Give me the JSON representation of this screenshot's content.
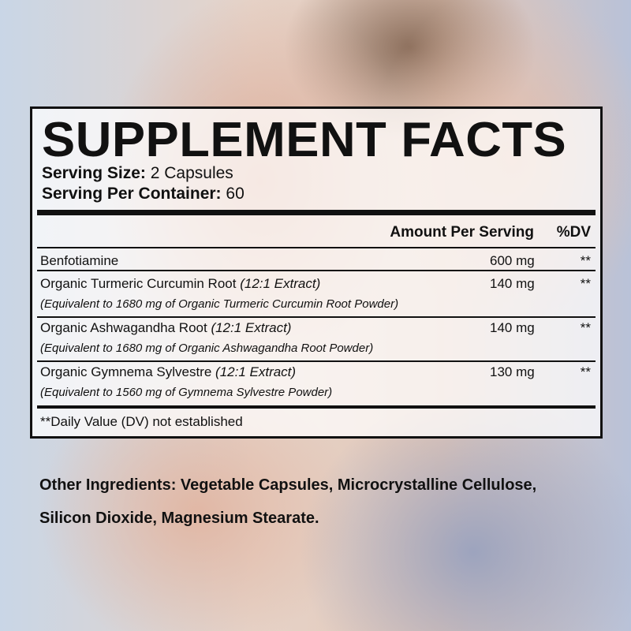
{
  "header": {
    "title": "SUPPLEMENT FACTS",
    "serving_size": {
      "label": "Serving Size:",
      "value": "2 Capsules"
    },
    "servings_per_container": {
      "label": "Serving Per Container:",
      "value": "60"
    }
  },
  "table": {
    "columns": [
      "Amount Per Serving",
      "%DV"
    ],
    "rows": [
      {
        "name": "Benfotiamine",
        "amount": "600 mg",
        "dv": "**"
      },
      {
        "name": "Organic Turmeric Curcumin Root",
        "extract": "(12:1 Extract)",
        "equivalent": "(Equivalent to 1680 mg of Organic Turmeric Curcumin Root Powder)",
        "amount": "140 mg",
        "dv": "**"
      },
      {
        "name": "Organic Ashwagandha Root",
        "extract": "(12:1 Extract)",
        "equivalent": "(Equivalent to 1680 mg of Organic Ashwagandha Root Powder)",
        "amount": "140 mg",
        "dv": "**"
      },
      {
        "name": "Organic Gymnema Sylvestre",
        "extract": "(12:1 Extract)",
        "equivalent": "(Equivalent to 1560 mg of Gymnema Sylvestre Powder)",
        "amount": "130 mg",
        "dv": "**"
      }
    ],
    "footnote": "**Daily Value (DV) not established"
  },
  "other_ingredients": {
    "label": "Other Ingredients:",
    "text": "Vegetable Capsules, Microcrystalline Cellulose, Silicon Dioxide, Magnesium Stearate."
  }
}
